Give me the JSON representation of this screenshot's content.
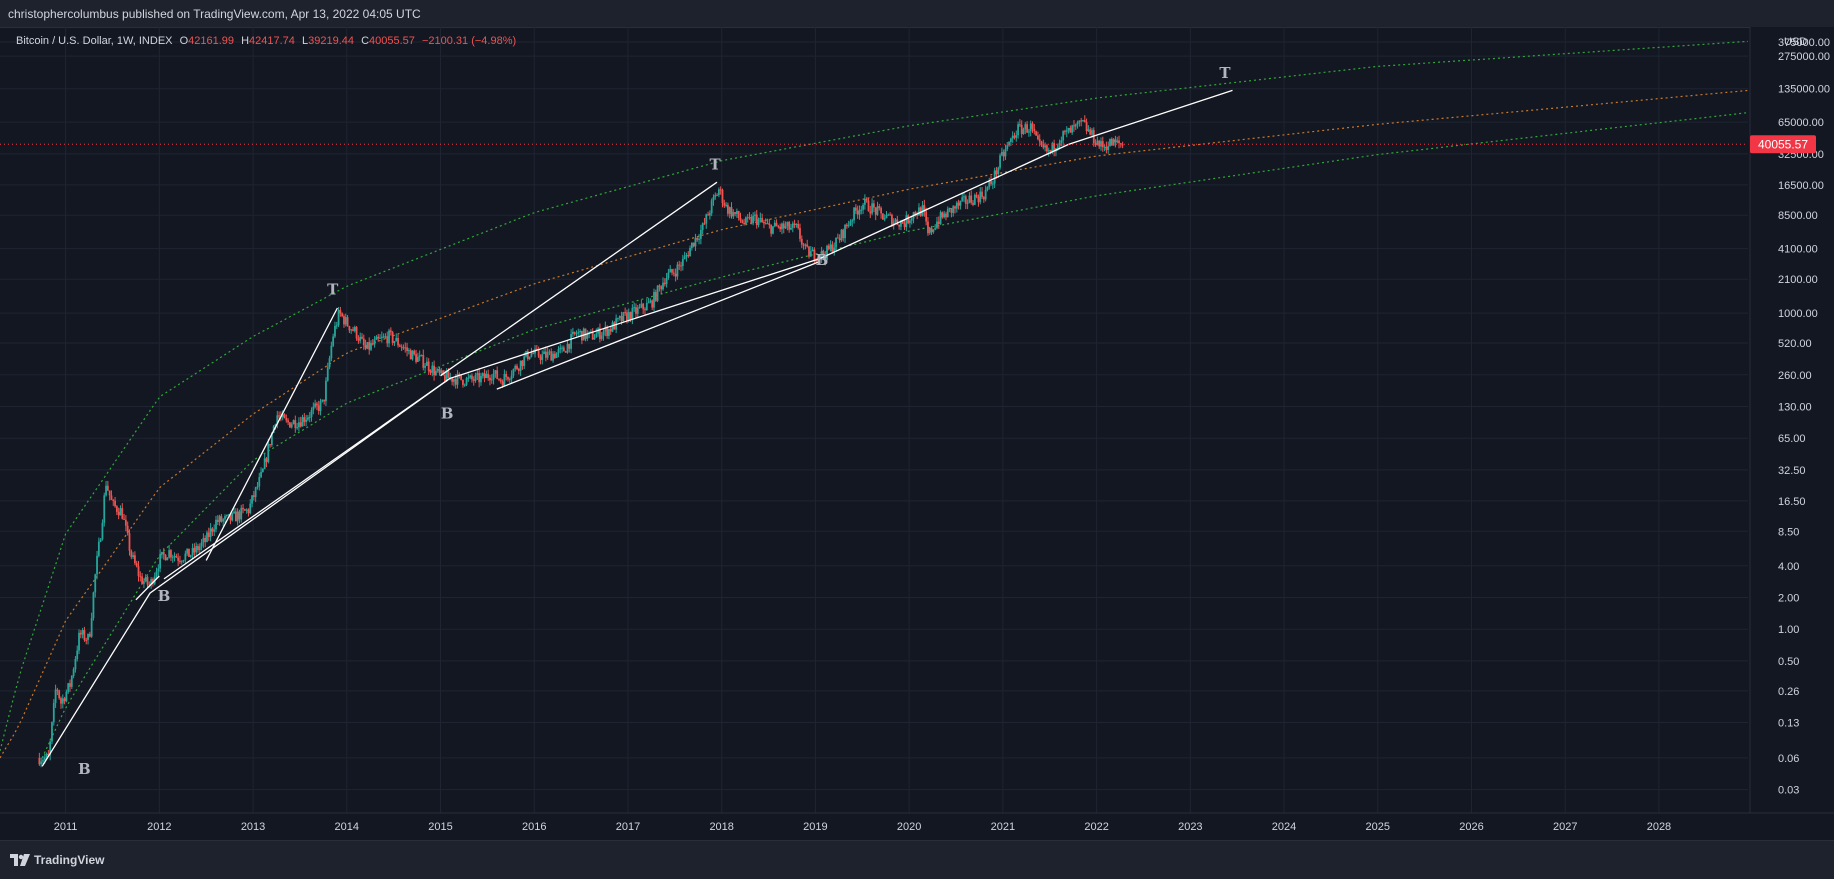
{
  "header": {
    "publish_line": "christophercolumbus published on TradingView.com, Apr 13, 2022 04:05 UTC"
  },
  "legend": {
    "symbol": "Bitcoin / U.S. Dollar, 1W, INDEX",
    "open_label": "O",
    "open": "42161.99",
    "high_label": "H",
    "high": "42417.74",
    "low_label": "L",
    "low": "39219.44",
    "close_label": "C",
    "close": "40055.57",
    "change": "−2100.31 (−4.98%)"
  },
  "footer": {
    "brand": "TradingView",
    "logo_icon": "tradingview-logo-icon"
  },
  "colors": {
    "background": "#131722",
    "up": "#26a69a",
    "down": "#ef5350",
    "price_tag": "#f23645",
    "outer_band": "#2fa83a",
    "mid_band": "#c8782a",
    "trendline": "#ffffff"
  },
  "chart_data": {
    "type": "candlestick",
    "symbol": "Bitcoin / U.S. Dollar",
    "interval": "1W",
    "y_scale": "log",
    "y_unit": "USD",
    "x_range": [
      2010.3,
      2028.95
    ],
    "y_range": [
      0.018,
      520000
    ],
    "grid": true,
    "x_tick_labels": [
      "2011",
      "2012",
      "2013",
      "2014",
      "2015",
      "2016",
      "2017",
      "2018",
      "2019",
      "2020",
      "2021",
      "2022",
      "2023",
      "2024",
      "2025",
      "2026",
      "2027",
      "2028"
    ],
    "y_tick_labels": [
      "375000.00",
      "275000.00",
      "135000.00",
      "65000.00",
      "32500.00",
      "16500.00",
      "8500.00",
      "4100.00",
      "2100.00",
      "1000.00",
      "520.00",
      "260.00",
      "130.00",
      "65.00",
      "32.50",
      "16.50",
      "8.50",
      "4.00",
      "2.00",
      "1.00",
      "0.50",
      "0.26",
      "0.13",
      "0.06",
      "0.03"
    ],
    "axis_unit_label": "USD",
    "last_price": "40055.57",
    "price_path": [
      [
        2010.72,
        0.06
      ],
      [
        2010.82,
        0.06
      ],
      [
        2010.9,
        0.3
      ],
      [
        2010.95,
        0.2
      ],
      [
        2011.05,
        0.3
      ],
      [
        2011.15,
        0.9
      ],
      [
        2011.25,
        0.8
      ],
      [
        2011.32,
        3.5
      ],
      [
        2011.38,
        9
      ],
      [
        2011.43,
        25
      ],
      [
        2011.5,
        15
      ],
      [
        2011.6,
        13
      ],
      [
        2011.7,
        5
      ],
      [
        2011.8,
        3
      ],
      [
        2011.9,
        2.6
      ],
      [
        2012.0,
        4.5
      ],
      [
        2012.1,
        5.5
      ],
      [
        2012.2,
        4.8
      ],
      [
        2012.35,
        5.2
      ],
      [
        2012.5,
        7
      ],
      [
        2012.6,
        10.5
      ],
      [
        2012.75,
        11
      ],
      [
        2012.95,
        13.5
      ],
      [
        2013.1,
        30
      ],
      [
        2013.25,
        110
      ],
      [
        2013.35,
        90
      ],
      [
        2013.5,
        95
      ],
      [
        2013.6,
        110
      ],
      [
        2013.75,
        140
      ],
      [
        2013.85,
        600
      ],
      [
        2013.92,
        1000
      ],
      [
        2014.0,
        800
      ],
      [
        2014.1,
        650
      ],
      [
        2014.2,
        450
      ],
      [
        2014.35,
        550
      ],
      [
        2014.45,
        600
      ],
      [
        2014.55,
        520
      ],
      [
        2014.7,
        400
      ],
      [
        2014.85,
        330
      ],
      [
        2015.0,
        250
      ],
      [
        2015.15,
        240
      ],
      [
        2015.3,
        230
      ],
      [
        2015.45,
        240
      ],
      [
        2015.55,
        270
      ],
      [
        2015.65,
        230
      ],
      [
        2015.8,
        300
      ],
      [
        2015.95,
        420
      ],
      [
        2016.1,
        390
      ],
      [
        2016.3,
        430
      ],
      [
        2016.45,
        650
      ],
      [
        2016.6,
        600
      ],
      [
        2016.8,
        700
      ],
      [
        2016.95,
        900
      ],
      [
        2017.1,
        1050
      ],
      [
        2017.25,
        1250
      ],
      [
        2017.4,
        2200
      ],
      [
        2017.5,
        2500
      ],
      [
        2017.6,
        3200
      ],
      [
        2017.7,
        4800
      ],
      [
        2017.8,
        6500
      ],
      [
        2017.9,
        11000
      ],
      [
        2017.97,
        15000
      ],
      [
        2018.05,
        10000
      ],
      [
        2018.15,
        8500
      ],
      [
        2018.25,
        7000
      ],
      [
        2018.35,
        8000
      ],
      [
        2018.5,
        6500
      ],
      [
        2018.65,
        6500
      ],
      [
        2018.8,
        6300
      ],
      [
        2018.9,
        3800
      ],
      [
        2018.98,
        3600
      ],
      [
        2019.1,
        3600
      ],
      [
        2019.25,
        5000
      ],
      [
        2019.4,
        8500
      ],
      [
        2019.5,
        11000
      ],
      [
        2019.6,
        10000
      ],
      [
        2019.7,
        8500
      ],
      [
        2019.85,
        7500
      ],
      [
        2019.95,
        7200
      ],
      [
        2020.05,
        9000
      ],
      [
        2020.15,
        9500
      ],
      [
        2020.2,
        5500
      ],
      [
        2020.3,
        7500
      ],
      [
        2020.45,
        9500
      ],
      [
        2020.6,
        11500
      ],
      [
        2020.8,
        13500
      ],
      [
        2020.9,
        19000
      ],
      [
        2020.98,
        29000
      ],
      [
        2021.05,
        38000
      ],
      [
        2021.15,
        55000
      ],
      [
        2021.3,
        58000
      ],
      [
        2021.38,
        38000
      ],
      [
        2021.5,
        33000
      ],
      [
        2021.6,
        46000
      ],
      [
        2021.75,
        55000
      ],
      [
        2021.85,
        63000
      ],
      [
        2021.95,
        48000
      ],
      [
        2022.05,
        38000
      ],
      [
        2022.15,
        41000
      ],
      [
        2022.28,
        40055.57
      ]
    ],
    "annotations": [
      {
        "text": "B",
        "x": 2011.2,
        "y": 0.042
      },
      {
        "text": "B",
        "x": 2012.05,
        "y": 1.85
      },
      {
        "text": "T",
        "x": 2013.85,
        "y": 1500
      },
      {
        "text": "B",
        "x": 2015.07,
        "y": 100
      },
      {
        "text": "T",
        "x": 2017.93,
        "y": 23000
      },
      {
        "text": "B",
        "x": 2019.07,
        "y": 2850
      },
      {
        "text": "T",
        "x": 2023.37,
        "y": 170000
      }
    ],
    "trendlines": [
      {
        "name": "support",
        "points": [
          [
            2010.75,
            0.05
          ],
          [
            2011.9,
            2.2
          ],
          [
            2015.1,
            240
          ],
          [
            2019.05,
            3300
          ],
          [
            2021.7,
            40000
          ],
          [
            2023.45,
            130000
          ]
        ]
      },
      {
        "name": "rise-2011",
        "points": [
          [
            2011.75,
            1.9
          ],
          [
            2012.0,
            3.2
          ]
        ]
      },
      {
        "name": "rise-2013",
        "points": [
          [
            2012.5,
            4.5
          ],
          [
            2013.9,
            1120
          ]
        ]
      },
      {
        "name": "support-2013",
        "points": [
          [
            2012.05,
            3.0
          ],
          [
            2015.1,
            240
          ]
        ]
      },
      {
        "name": "rise-2017",
        "points": [
          [
            2015.0,
            255
          ],
          [
            2017.95,
            17500
          ]
        ]
      },
      {
        "name": "support-2015",
        "points": [
          [
            2015.6,
            190
          ],
          [
            2019.05,
            3100
          ]
        ]
      }
    ],
    "bands": [
      {
        "name": "upper",
        "color": "#2fa83a",
        "points": [
          [
            2010.3,
            0.07
          ],
          [
            2010.5,
            0.35
          ],
          [
            2011.0,
            8
          ],
          [
            2012.0,
            160
          ],
          [
            2013.0,
            600
          ],
          [
            2014.0,
            1800
          ],
          [
            2016.0,
            9000
          ],
          [
            2018.0,
            28000
          ],
          [
            2020.0,
            60000
          ],
          [
            2022.0,
            110000
          ],
          [
            2025.0,
            220000
          ],
          [
            2028.95,
            380000
          ]
        ]
      },
      {
        "name": "middle",
        "color": "#c8782a",
        "points": [
          [
            2010.3,
            0.06
          ],
          [
            2010.5,
            0.12
          ],
          [
            2011.0,
            1.2
          ],
          [
            2012.0,
            22
          ],
          [
            2013.0,
            110
          ],
          [
            2014.0,
            420
          ],
          [
            2016.0,
            1900
          ],
          [
            2018.0,
            6200
          ],
          [
            2020.0,
            15000
          ],
          [
            2022.0,
            31000
          ],
          [
            2025.0,
            62000
          ],
          [
            2028.95,
            130000
          ]
        ]
      },
      {
        "name": "lower",
        "color": "#2fa83a",
        "points": [
          [
            2010.75,
            0.06
          ],
          [
            2011.0,
            0.18
          ],
          [
            2012.0,
            5
          ],
          [
            2013.0,
            40
          ],
          [
            2014.0,
            140
          ],
          [
            2016.0,
            700
          ],
          [
            2018.0,
            2200
          ],
          [
            2020.0,
            6000
          ],
          [
            2022.0,
            13000
          ],
          [
            2025.0,
            32000
          ],
          [
            2028.95,
            80000
          ]
        ]
      }
    ]
  }
}
